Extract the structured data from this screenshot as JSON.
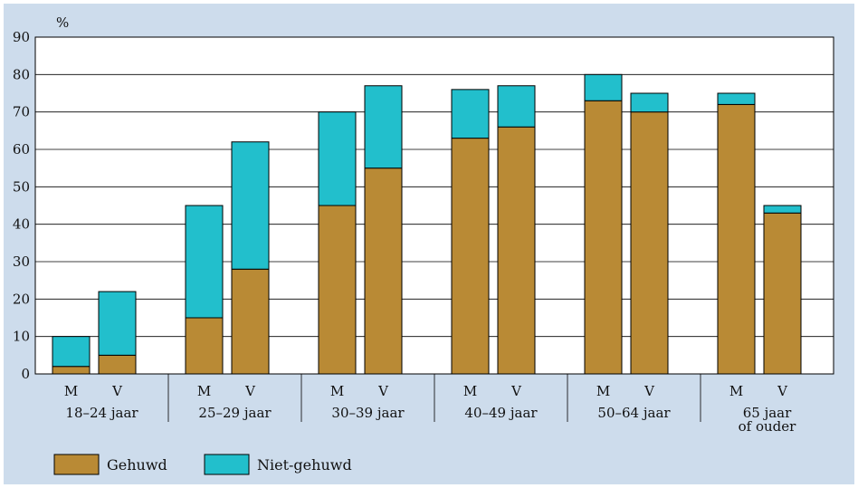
{
  "chart_data": {
    "type": "bar",
    "stacked": true,
    "ylabel": "%",
    "ylim": [
      0,
      90
    ],
    "yticks": [
      0,
      10,
      20,
      30,
      40,
      50,
      60,
      70,
      80,
      90
    ],
    "groups": [
      {
        "label_lines": [
          "18–24 jaar"
        ]
      },
      {
        "label_lines": [
          "25–29 jaar"
        ]
      },
      {
        "label_lines": [
          "30–39 jaar"
        ]
      },
      {
        "label_lines": [
          "40–49 jaar"
        ]
      },
      {
        "label_lines": [
          "50–64 jaar"
        ]
      },
      {
        "label_lines": [
          "65 jaar",
          "of ouder"
        ]
      }
    ],
    "bar_labels": [
      "M",
      "V"
    ],
    "series": [
      {
        "name": "Gehuwd",
        "color": "#b98a35",
        "values": [
          [
            2,
            5
          ],
          [
            15,
            28
          ],
          [
            45,
            55
          ],
          [
            63,
            66
          ],
          [
            73,
            70
          ],
          [
            72,
            43
          ]
        ]
      },
      {
        "name": "Niet-gehuwd",
        "color": "#22bfcc",
        "values": [
          [
            8,
            17
          ],
          [
            30,
            34
          ],
          [
            25,
            22
          ],
          [
            13,
            11
          ],
          [
            7,
            5
          ],
          [
            3,
            2
          ]
        ]
      }
    ],
    "legend_position": "bottom-left",
    "grid": true
  }
}
